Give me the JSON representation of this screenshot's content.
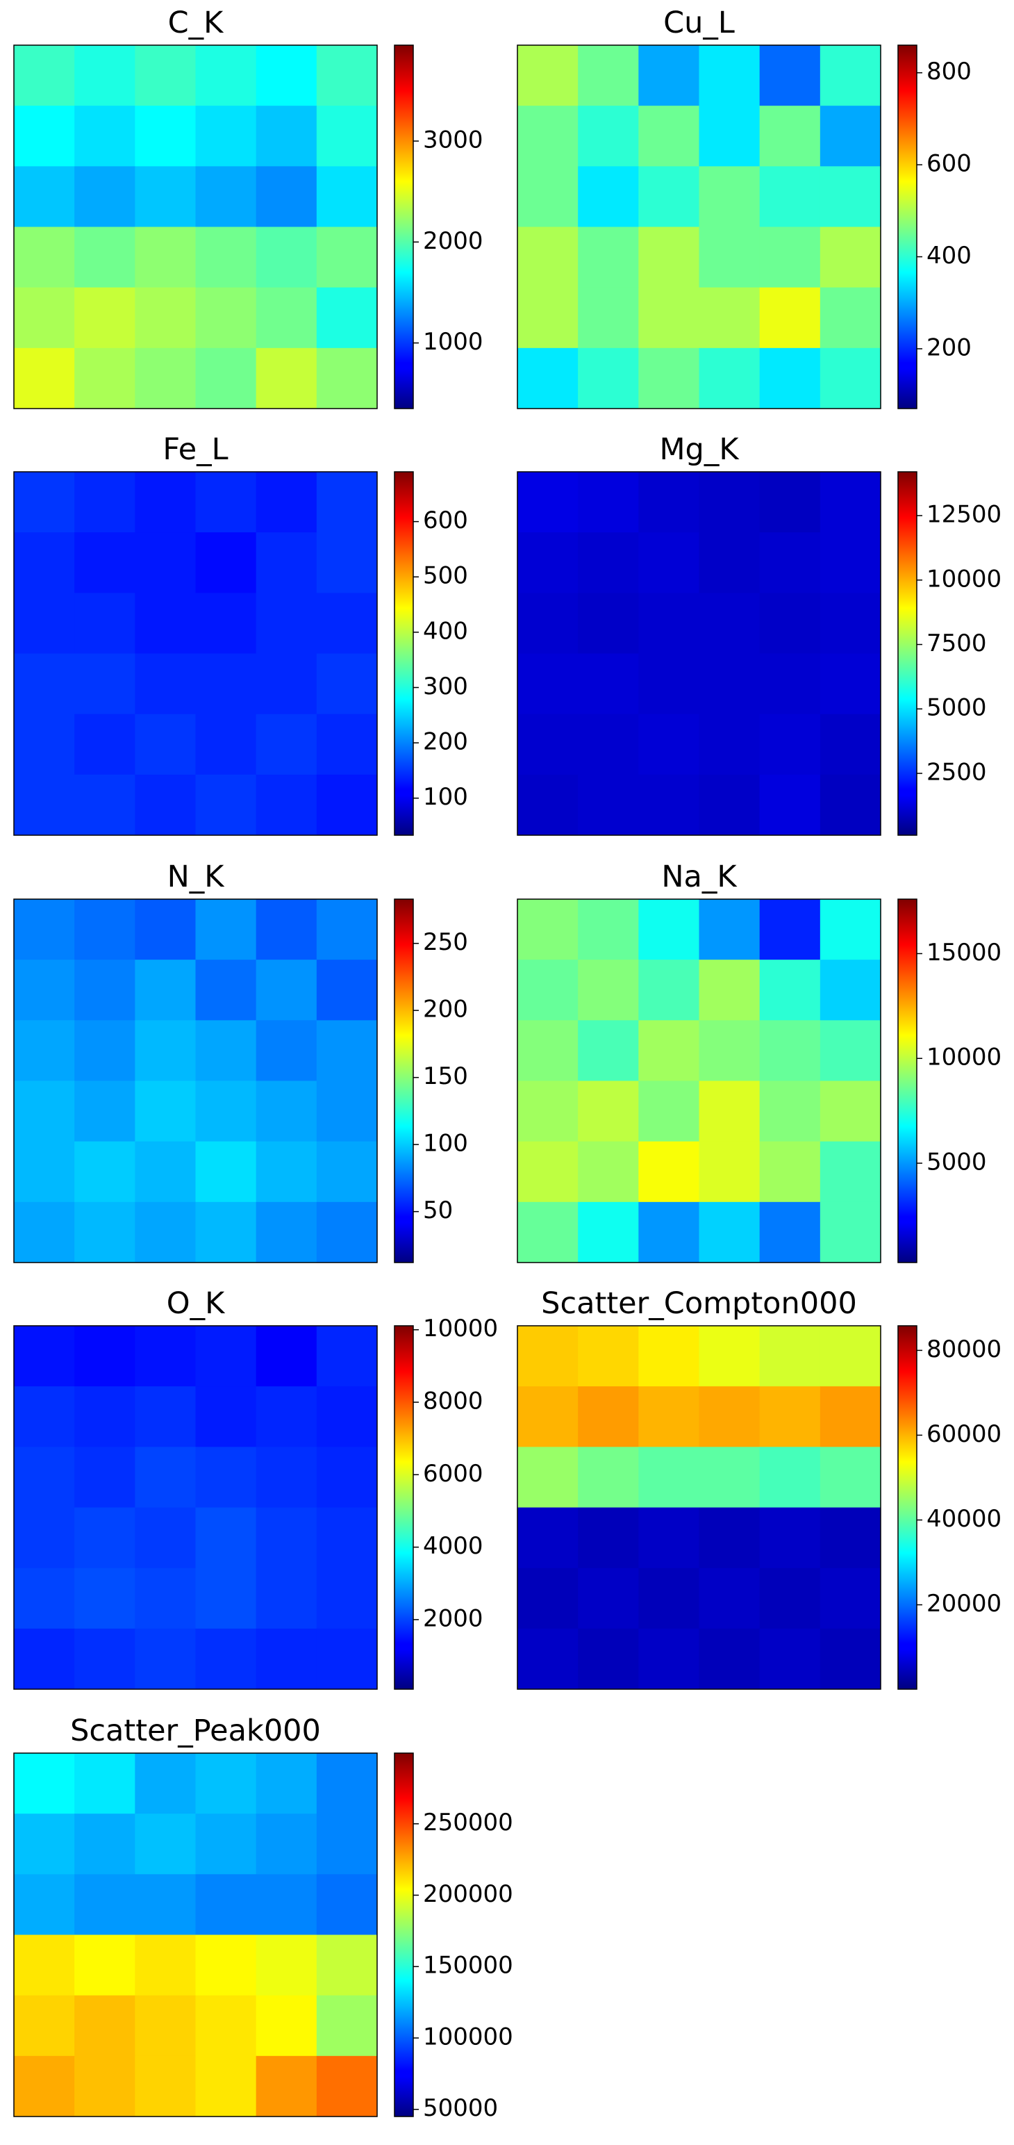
{
  "chart_data": [
    {
      "type": "heatmap",
      "title": "C_K",
      "colormap": "jet",
      "clim": [
        350,
        3950
      ],
      "cticks": [
        1000,
        2000,
        3000
      ],
      "values": [
        [
          1900,
          1800,
          1900,
          1800,
          1700,
          1900
        ],
        [
          1700,
          1600,
          1700,
          1600,
          1500,
          1800
        ],
        [
          1500,
          1400,
          1500,
          1400,
          1300,
          1600
        ],
        [
          2200,
          2100,
          2200,
          2100,
          2000,
          2100
        ],
        [
          2300,
          2400,
          2300,
          2200,
          2100,
          1800
        ],
        [
          2500,
          2300,
          2200,
          2100,
          2400,
          2200
        ]
      ]
    },
    {
      "type": "heatmap",
      "title": "Cu_L",
      "colormap": "jet",
      "clim": [
        70,
        860
      ],
      "cticks": [
        200,
        400,
        600,
        800
      ],
      "values": [
        [
          500,
          450,
          300,
          350,
          250,
          400
        ],
        [
          450,
          400,
          450,
          350,
          450,
          300
        ],
        [
          450,
          350,
          400,
          450,
          400,
          400
        ],
        [
          500,
          450,
          500,
          450,
          450,
          500
        ],
        [
          500,
          450,
          500,
          500,
          550,
          450
        ],
        [
          350,
          400,
          450,
          400,
          350,
          400
        ]
      ]
    },
    {
      "type": "heatmap",
      "title": "Fe_L",
      "colormap": "jet",
      "clim": [
        33,
        690
      ],
      "cticks": [
        100,
        200,
        300,
        400,
        500,
        600
      ],
      "values": [
        [
          150,
          140,
          130,
          140,
          130,
          150
        ],
        [
          140,
          130,
          130,
          120,
          140,
          150
        ],
        [
          140,
          140,
          130,
          130,
          140,
          140
        ],
        [
          150,
          150,
          140,
          140,
          140,
          150
        ],
        [
          150,
          140,
          150,
          140,
          150,
          140
        ],
        [
          150,
          150,
          140,
          150,
          140,
          130
        ]
      ]
    },
    {
      "type": "heatmap",
      "title": "Mg_K",
      "colormap": "jet",
      "clim": [
        100,
        14200
      ],
      "cticks": [
        2500,
        5000,
        7500,
        10000,
        12500
      ],
      "values": [
        [
          1500,
          1400,
          1200,
          1100,
          1000,
          1300
        ],
        [
          1300,
          1200,
          1300,
          1100,
          1200,
          1300
        ],
        [
          1200,
          1100,
          1200,
          1200,
          1100,
          1200
        ],
        [
          1300,
          1300,
          1200,
          1200,
          1200,
          1300
        ],
        [
          1200,
          1200,
          1300,
          1200,
          1300,
          1100
        ],
        [
          1100,
          1200,
          1200,
          1100,
          1400,
          1000
        ]
      ]
    },
    {
      "type": "heatmap",
      "title": "N_K",
      "colormap": "jet",
      "clim": [
        12,
        283
      ],
      "cticks": [
        50,
        100,
        150,
        200,
        250
      ],
      "values": [
        [
          80,
          75,
          70,
          85,
          70,
          80
        ],
        [
          85,
          80,
          90,
          75,
          85,
          70
        ],
        [
          90,
          85,
          95,
          90,
          80,
          85
        ],
        [
          95,
          90,
          100,
          95,
          90,
          85
        ],
        [
          95,
          100,
          95,
          105,
          95,
          90
        ],
        [
          90,
          95,
          90,
          95,
          85,
          80
        ]
      ]
    },
    {
      "type": "heatmap",
      "title": "Na_K",
      "colormap": "jet",
      "clim": [
        260,
        17600
      ],
      "cticks": [
        5000,
        10000,
        15000
      ],
      "values": [
        [
          9000,
          8500,
          7000,
          5000,
          3000,
          7000
        ],
        [
          8500,
          9000,
          8000,
          9500,
          7500,
          6000
        ],
        [
          9000,
          8000,
          9500,
          9000,
          8500,
          8000
        ],
        [
          9500,
          10000,
          9000,
          10500,
          9000,
          9500
        ],
        [
          10000,
          9500,
          11000,
          10500,
          9500,
          8000
        ],
        [
          8500,
          7000,
          5000,
          6000,
          4500,
          8000
        ]
      ]
    },
    {
      "type": "heatmap",
      "title": "O_K",
      "colormap": "jet",
      "clim": [
        80,
        10110
      ],
      "cticks": [
        2000,
        4000,
        6000,
        8000,
        10000
      ],
      "values": [
        [
          1500,
          1400,
          1500,
          1600,
          1300,
          1700
        ],
        [
          1800,
          1700,
          1800,
          1600,
          1700,
          1600
        ],
        [
          1900,
          1800,
          2000,
          1900,
          1800,
          1700
        ],
        [
          1900,
          2000,
          1900,
          2100,
          1900,
          1800
        ],
        [
          2000,
          2100,
          2000,
          2100,
          1900,
          1800
        ],
        [
          1700,
          1800,
          1900,
          1800,
          1700,
          1700
        ]
      ]
    },
    {
      "type": "heatmap",
      "title": "Scatter_Compton000",
      "colormap": "jet",
      "clim": [
        100,
        85800
      ],
      "cticks": [
        20000,
        40000,
        60000,
        80000
      ],
      "values": [
        [
          58000,
          57000,
          55000,
          52000,
          50000,
          50000
        ],
        [
          60000,
          62000,
          60000,
          61000,
          60000,
          62000
        ],
        [
          45000,
          42000,
          40000,
          40000,
          38000,
          40000
        ],
        [
          6000,
          5000,
          6000,
          5000,
          6000,
          5000
        ],
        [
          5000,
          6000,
          5000,
          6000,
          5000,
          6000
        ],
        [
          6000,
          5000,
          6000,
          5000,
          6000,
          5000
        ]
      ]
    },
    {
      "type": "heatmap",
      "title": "Scatter_Peak000",
      "colormap": "jet",
      "clim": [
        45000,
        299500
      ],
      "cticks": [
        50000,
        100000,
        150000,
        200000,
        250000
      ],
      "values": [
        [
          140000,
          135000,
          120000,
          125000,
          120000,
          110000
        ],
        [
          125000,
          120000,
          125000,
          120000,
          115000,
          110000
        ],
        [
          120000,
          115000,
          115000,
          110000,
          110000,
          105000
        ],
        [
          210000,
          205000,
          210000,
          205000,
          200000,
          190000
        ],
        [
          215000,
          220000,
          215000,
          210000,
          205000,
          180000
        ],
        [
          225000,
          220000,
          215000,
          210000,
          230000,
          240000
        ]
      ]
    }
  ]
}
